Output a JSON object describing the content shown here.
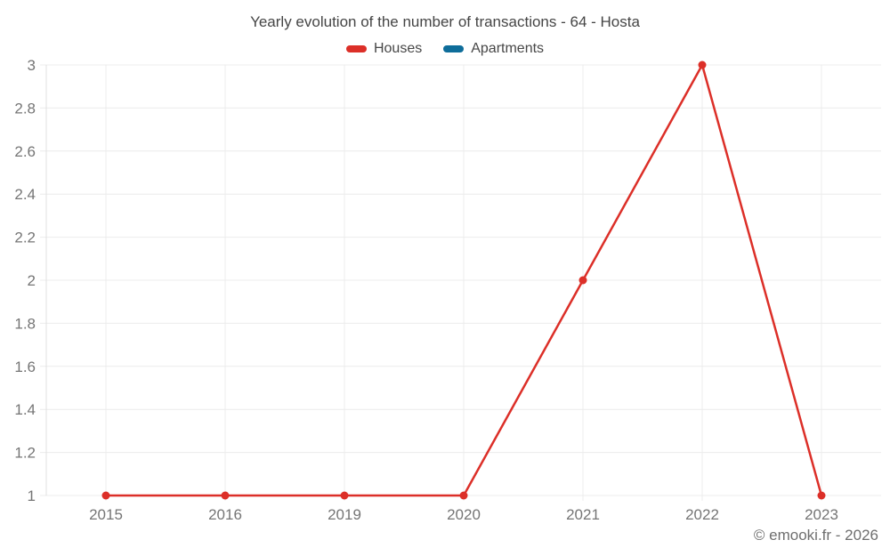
{
  "chart_data": {
    "type": "line",
    "title": "Yearly evolution of the number of transactions - 64 - Hosta",
    "categories": [
      "2015",
      "2016",
      "2019",
      "2020",
      "2021",
      "2022",
      "2023"
    ],
    "series": [
      {
        "name": "Houses",
        "color": "#dc2f28",
        "values": [
          1,
          1,
          1,
          1,
          2,
          3,
          1
        ]
      },
      {
        "name": "Apartments",
        "color": "#0e6d9a",
        "values": []
      }
    ],
    "xlabel": "",
    "ylabel": "",
    "ylim": [
      1,
      3
    ],
    "yticks": [
      "1",
      "1.2",
      "1.4",
      "1.6",
      "1.8",
      "2",
      "2.2",
      "2.4",
      "2.6",
      "2.8",
      "3"
    ],
    "grid": "on",
    "legend_position": "top",
    "colors": {
      "grid": "#ececec",
      "axis_line": "#e0e0e0",
      "axis_text": "#757575"
    }
  },
  "footer": {
    "copyright": "© emooki.fr - 2026"
  }
}
